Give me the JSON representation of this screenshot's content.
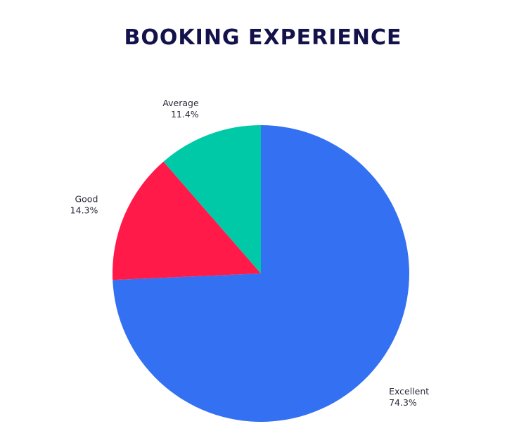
{
  "chart_data": {
    "type": "pie",
    "title": "BOOKING EXPERIENCE",
    "slices": [
      {
        "label": "Excellent",
        "value": 74.3,
        "display": "74.3%",
        "color": "#3371F2"
      },
      {
        "label": "Good",
        "value": 14.3,
        "display": "14.3%",
        "color": "#FF1A4A"
      },
      {
        "label": "Average",
        "value": 11.4,
        "display": "11.4%",
        "color": "#00C9A7"
      }
    ],
    "start": "12 o'clock",
    "direction": "clockwise",
    "legend": "none",
    "labels": "outside"
  }
}
